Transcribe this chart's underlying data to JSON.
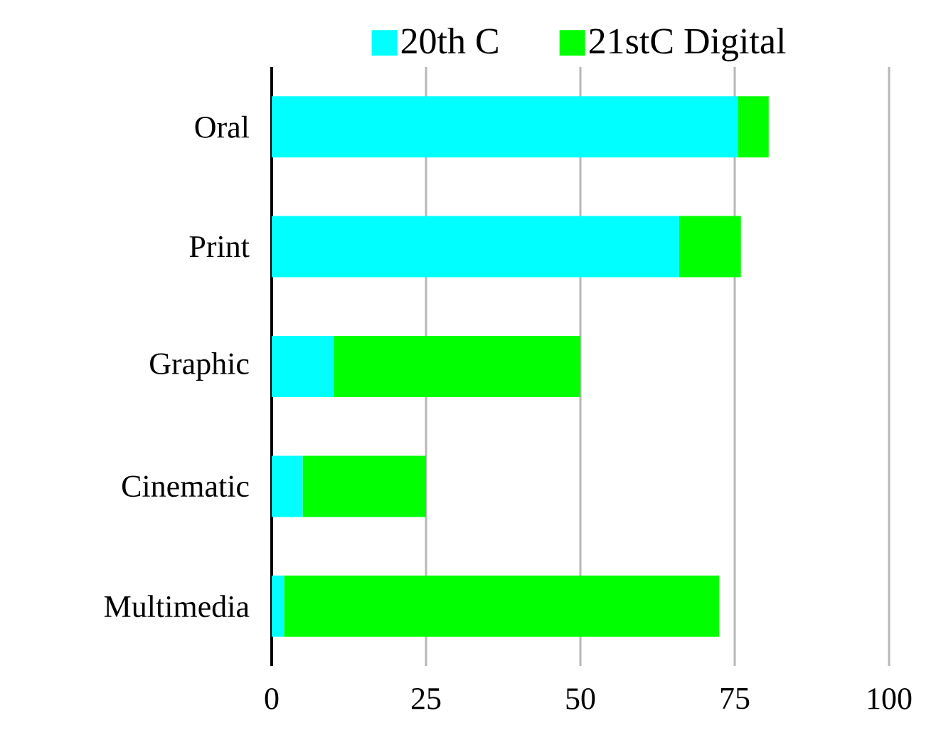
{
  "chart_data": {
    "type": "bar",
    "orientation": "horizontal",
    "stacked": true,
    "categories": [
      "Oral",
      "Print",
      "Graphic",
      "Cinematic",
      "Multimedia"
    ],
    "series": [
      {
        "name": "20th C",
        "color": "#00ffff",
        "values": [
          75.5,
          66,
          10,
          5,
          2
        ]
      },
      {
        "name": "21stC Digital",
        "color": "#00ff00",
        "values": [
          5,
          10,
          40,
          20,
          70.5
        ]
      }
    ],
    "xlim": [
      0,
      100
    ],
    "xticks": [
      0,
      25,
      50,
      75,
      100
    ],
    "grid": "x",
    "legend": "top"
  }
}
